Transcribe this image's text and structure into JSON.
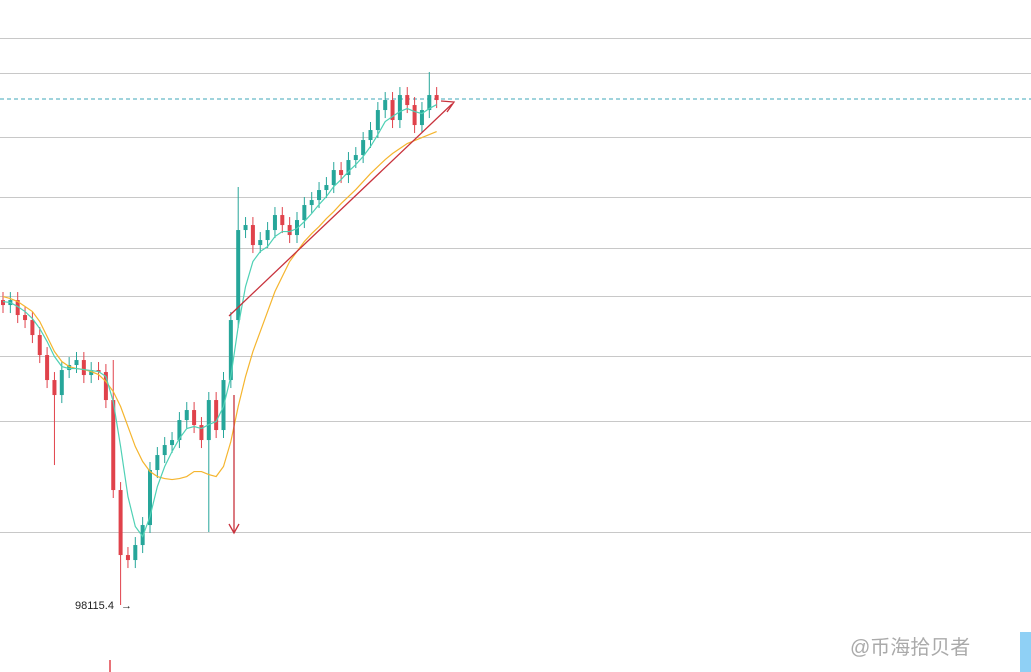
{
  "chart_data": {
    "type": "candlestick",
    "open": [
      101165,
      101115,
      101165,
      101015,
      100965,
      100815,
      100615,
      100365,
      100215,
      100465,
      100515,
      100565,
      100415,
      100465,
      100445,
      100165,
      99265,
      98615,
      98565,
      98715,
      98915,
      99465,
      99615,
      99715,
      99765,
      99965,
      100065,
      99915,
      99765,
      100165,
      99865,
      100365,
      100965,
      101865,
      101915,
      101715,
      101765,
      101865,
      102015,
      101915,
      101815,
      101965,
      102115,
      102165,
      102265,
      102315,
      102465,
      102415,
      102565,
      102615,
      102765,
      102865,
      103065,
      103165,
      102965,
      103215,
      103115,
      102915,
      103065,
      103215
    ],
    "high": [
      101245,
      101245,
      101245,
      101095,
      101045,
      100895,
      100695,
      100445,
      100545,
      100595,
      100645,
      100645,
      100545,
      100545,
      100525,
      100565,
      99345,
      98695,
      98795,
      98995,
      99545,
      99695,
      99795,
      99845,
      100045,
      100145,
      100145,
      99995,
      100245,
      100245,
      100445,
      101045,
      102295,
      101995,
      101995,
      101845,
      101945,
      102095,
      102095,
      101995,
      102045,
      102195,
      102245,
      102345,
      102395,
      102545,
      102545,
      102645,
      102695,
      102845,
      102945,
      103145,
      103245,
      103245,
      103295,
      103295,
      103195,
      103145,
      103445,
      103295
    ],
    "low": [
      101035,
      101035,
      100935,
      100885,
      100735,
      100535,
      100285,
      99515,
      100135,
      100385,
      100435,
      100335,
      100335,
      100365,
      100085,
      99185,
      98115.4,
      98485,
      98485,
      98635,
      98835,
      99385,
      99535,
      99635,
      99685,
      99885,
      99835,
      99685,
      98845,
      99785,
      99785,
      100285,
      100885,
      101785,
      101635,
      101635,
      101685,
      101785,
      101835,
      101735,
      101735,
      101885,
      102035,
      102085,
      102185,
      102235,
      102335,
      102335,
      102485,
      102535,
      102685,
      102785,
      102985,
      102885,
      102885,
      103035,
      102835,
      102835,
      102985,
      103085
    ],
    "close": [
      101115,
      101165,
      101015,
      100965,
      100815,
      100615,
      100365,
      100215,
      100465,
      100515,
      100565,
      100415,
      100465,
      100445,
      100165,
      99265,
      98615,
      98565,
      98715,
      98915,
      99465,
      99615,
      99715,
      99765,
      99965,
      100065,
      99915,
      99765,
      100165,
      99865,
      100365,
      100965,
      101865,
      101915,
      101715,
      101765,
      101865,
      102015,
      101915,
      101815,
      101965,
      102115,
      102165,
      102265,
      102315,
      102465,
      102415,
      102565,
      102615,
      102765,
      102865,
      103065,
      103165,
      102965,
      103215,
      103115,
      102915,
      103065,
      103215,
      103165
    ],
    "ma_fast": {
      "color": "#4fd1b5",
      "values": [
        101150,
        101140,
        101100,
        101050,
        100980,
        100880,
        100750,
        100600,
        100500,
        100480,
        100480,
        100470,
        100460,
        100450,
        100400,
        100150,
        99700,
        99200,
        98900,
        98800,
        99000,
        99300,
        99500,
        99650,
        99780,
        99880,
        99900,
        99880,
        99920,
        99950,
        100100,
        100400,
        100900,
        101300,
        101550,
        101650,
        101700,
        101800,
        101850,
        101850,
        101880,
        101950,
        102030,
        102120,
        102200,
        102300,
        102370,
        102450,
        102520,
        102600,
        102700,
        102820,
        102950,
        103000,
        103050,
        103080,
        103050,
        103030,
        103080,
        103120
      ]
    },
    "ma_slow": {
      "color": "#f5b52e",
      "values": [
        101200,
        101180,
        101150,
        101100,
        101050,
        100950,
        100800,
        100650,
        100550,
        100500,
        100480,
        100470,
        100450,
        100420,
        100350,
        100250,
        100100,
        99900,
        99700,
        99550,
        99450,
        99400,
        99380,
        99370,
        99380,
        99400,
        99450,
        99450,
        99420,
        99400,
        99500,
        99750,
        100100,
        100400,
        100650,
        100850,
        101050,
        101250,
        101400,
        101550,
        101650,
        101750,
        101830,
        101900,
        101980,
        102050,
        102130,
        102200,
        102270,
        102350,
        102430,
        102500,
        102570,
        102630,
        102680,
        102730,
        102760,
        102790,
        102820,
        102850
      ]
    },
    "up_color": "#26a69a",
    "down_color": "#e0424b",
    "price_line": 103175,
    "ylim": [
      97445.4,
      104165.4
    ],
    "yticks": [
      103785,
      103435,
      102795,
      102195,
      101685,
      101205,
      100605,
      99955,
      98845
    ],
    "grid": true,
    "watermark": "@币海拾贝者"
  }
}
